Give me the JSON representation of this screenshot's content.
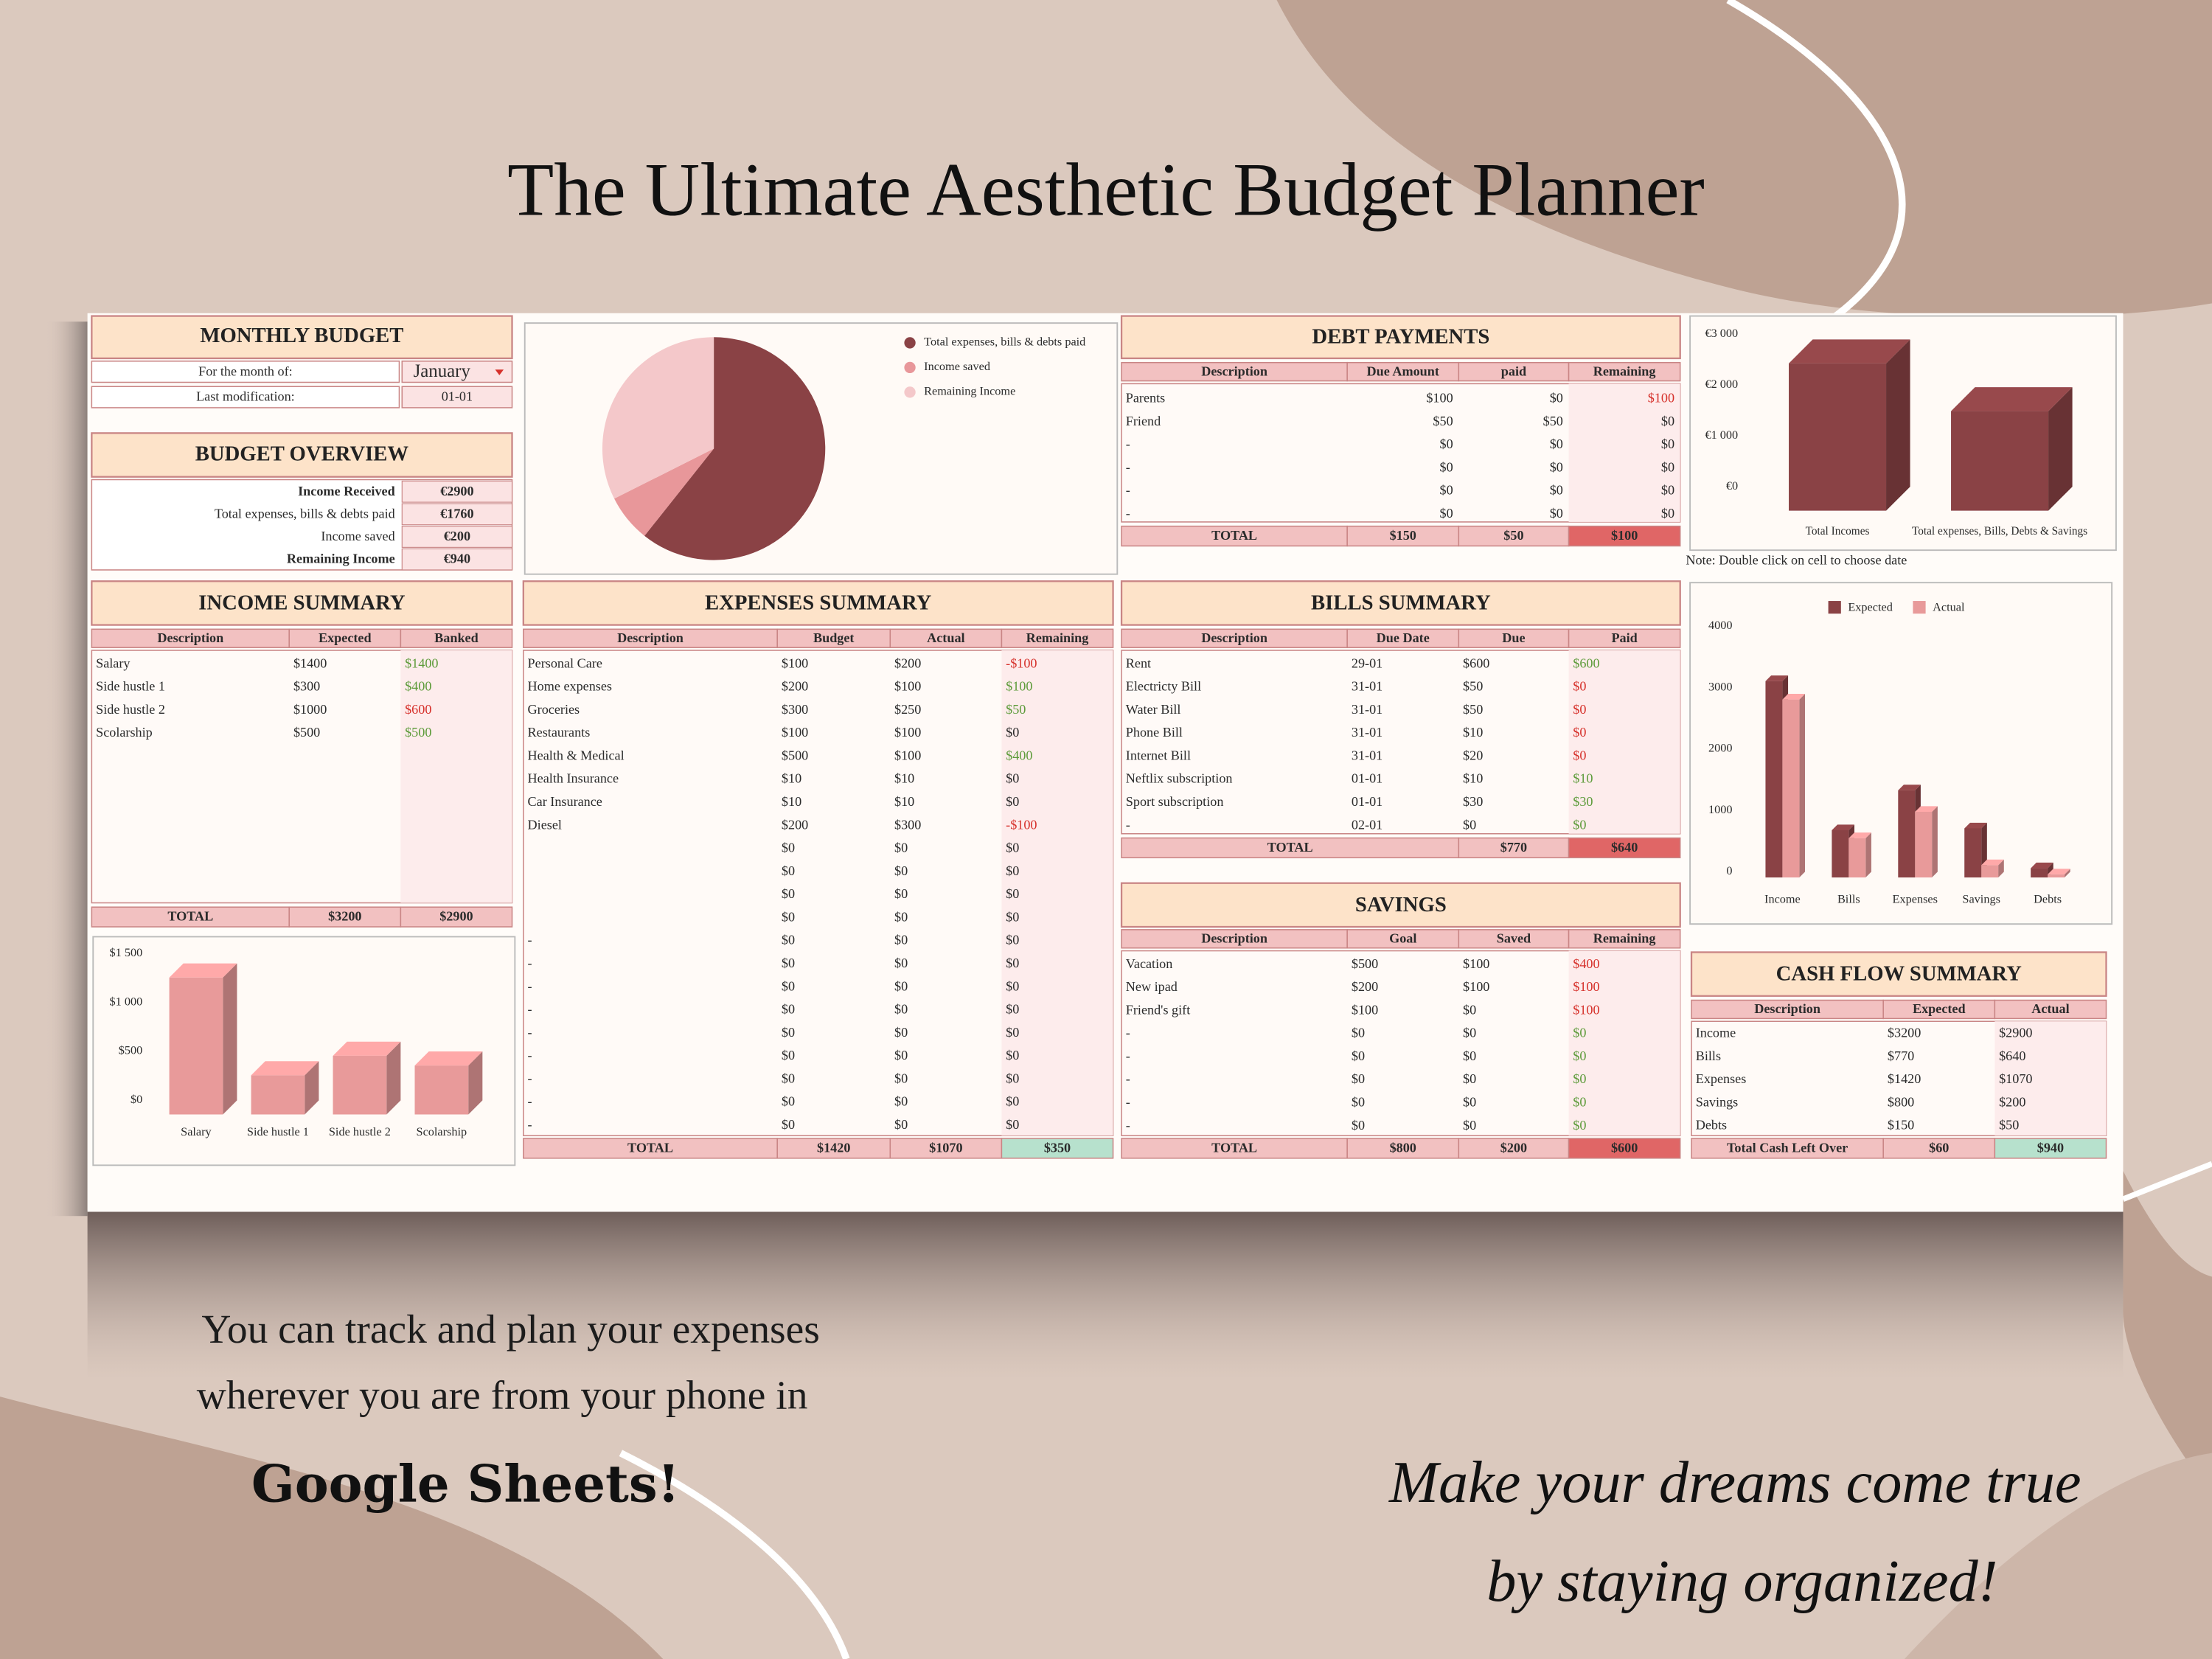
{
  "header": {
    "title": "The Ultimate Aesthetic Budget Planner"
  },
  "monthly_budget": {
    "title": "MONTHLY BUDGET",
    "rows": [
      [
        "For the month of:",
        "January"
      ],
      [
        "Last modification:",
        "01-01"
      ]
    ]
  },
  "budget_overview": {
    "title": "BUDGET OVERVIEW",
    "rows": [
      [
        "Income Received",
        "€2900"
      ],
      [
        "Total expenses, bills & debts paid",
        "€1760"
      ],
      [
        "Income saved",
        "€200"
      ],
      [
        "Remaining Income",
        "€940"
      ]
    ]
  },
  "income_summary": {
    "title": "INCOME SUMMARY",
    "columns": [
      "Description",
      "Expected",
      "Banked"
    ],
    "rows": [
      [
        "Salary",
        "$1400",
        "$1400"
      ],
      [
        "Side hustle 1",
        "$300",
        "$400"
      ],
      [
        "Side hustle 2",
        "$1000",
        "$600"
      ],
      [
        "Scolarship",
        "$500",
        "$500"
      ]
    ],
    "last_column_colors": [
      "#5d9b3a",
      "#5d9b3a",
      "#d6312b",
      "#5d9b3a"
    ],
    "total": [
      "TOTAL",
      "$3200",
      "$2900"
    ]
  },
  "expenses_summary": {
    "title": "EXPENSES SUMMARY",
    "columns": [
      "Description",
      "Budget",
      "Actual",
      "Remaining"
    ],
    "rows": [
      [
        "Personal Care",
        "$100",
        "$200",
        "-$100"
      ],
      [
        "Home expenses",
        "$200",
        "$100",
        "$100"
      ],
      [
        "Groceries",
        "$300",
        "$250",
        "$50"
      ],
      [
        "Restaurants",
        "$100",
        "$100",
        "$0"
      ],
      [
        "Health & Medical",
        "$500",
        "$100",
        "$400"
      ],
      [
        "Health Insurance",
        "$10",
        "$10",
        "$0"
      ],
      [
        "Car Insurance",
        "$10",
        "$10",
        "$0"
      ],
      [
        "Diesel",
        "$200",
        "$300",
        "-$100"
      ],
      [
        null,
        "$0",
        "$0",
        "$0"
      ],
      [
        null,
        "$0",
        "$0",
        "$0"
      ],
      [
        null,
        "$0",
        "$0",
        "$0"
      ],
      [
        null,
        "$0",
        "$0",
        "$0"
      ],
      [
        "-",
        "$0",
        "$0",
        "$0"
      ],
      [
        "-",
        "$0",
        "$0",
        "$0"
      ],
      [
        "-",
        "$0",
        "$0",
        "$0"
      ],
      [
        "-",
        "$0",
        "$0",
        "$0"
      ],
      [
        "-",
        "$0",
        "$0",
        "$0"
      ],
      [
        "-",
        "$0",
        "$0",
        "$0"
      ],
      [
        "-",
        "$0",
        "$0",
        "$0"
      ],
      [
        "-",
        "$0",
        "$0",
        "$0"
      ],
      [
        "-",
        "$0",
        "$0",
        "$0"
      ]
    ],
    "last_column_colors": [
      "#d6312b",
      "#5d9b3a",
      "#5d9b3a",
      null,
      "#5d9b3a",
      null,
      null,
      "#d6312b",
      null,
      null,
      null,
      null,
      null,
      null,
      null,
      null,
      null,
      null,
      null,
      null,
      null
    ],
    "total": [
      "TOTAL",
      "$1420",
      "$1070",
      "$350"
    ],
    "total_highlight": "#b7e1cd"
  },
  "debt_payments": {
    "title": "DEBT PAYMENTS",
    "columns": [
      "Description",
      "Due Amount",
      "paid",
      "Remaining"
    ],
    "rows": [
      [
        "Parents",
        "$100",
        "$0",
        "$100"
      ],
      [
        "Friend",
        "$50",
        "$50",
        "$0"
      ],
      [
        "-",
        "$0",
        "$0",
        "$0"
      ],
      [
        "-",
        "$0",
        "$0",
        "$0"
      ],
      [
        "-",
        "$0",
        "$0",
        "$0"
      ],
      [
        "-",
        "$0",
        "$0",
        "$0"
      ]
    ],
    "last_column_colors": [
      "#d6312b",
      null,
      null,
      null,
      null,
      null
    ],
    "total": [
      "TOTAL",
      "$150",
      "$50",
      "$100"
    ],
    "total_highlight": "#e06666"
  },
  "bills_summary": {
    "title": "BILLS SUMMARY",
    "columns": [
      "Description",
      "Due Date",
      "Due",
      "Paid"
    ],
    "rows": [
      [
        "Rent",
        "29-01",
        "$600",
        "$600"
      ],
      [
        "Electricty Bill",
        "31-01",
        "$50",
        "$0"
      ],
      [
        "Water Bill",
        "31-01",
        "$50",
        "$0"
      ],
      [
        "Phone Bill",
        "31-01",
        "$10",
        "$0"
      ],
      [
        "Internet Bill",
        "31-01",
        "$20",
        "$0"
      ],
      [
        "Neftlix subscription",
        "01-01",
        "$10",
        "$10"
      ],
      [
        "Sport subscription",
        "01-01",
        "$30",
        "$30"
      ],
      [
        "-",
        "02-01",
        "$0",
        "$0"
      ]
    ],
    "last_column_colors": [
      "#5d9b3a",
      "#d6312b",
      "#d6312b",
      "#d6312b",
      "#d6312b",
      "#5d9b3a",
      "#5d9b3a",
      "#5d9b3a"
    ],
    "total": [
      "TOTAL",
      null,
      "$770",
      "$640"
    ],
    "total_highlight": "#e06666"
  },
  "savings": {
    "title": "SAVINGS",
    "columns": [
      "Description",
      "Goal",
      "Saved",
      "Remaining"
    ],
    "rows": [
      [
        "Vacation",
        "$500",
        "$100",
        "$400"
      ],
      [
        "New ipad",
        "$200",
        "$100",
        "$100"
      ],
      [
        "Friend's gift",
        "$100",
        "$0",
        "$100"
      ],
      [
        "-",
        "$0",
        "$0",
        "$0"
      ],
      [
        "-",
        "$0",
        "$0",
        "$0"
      ],
      [
        "-",
        "$0",
        "$0",
        "$0"
      ],
      [
        "-",
        "$0",
        "$0",
        "$0"
      ],
      [
        "-",
        "$0",
        "$0",
        "$0"
      ]
    ],
    "last_column_colors": [
      "#d6312b",
      "#d6312b",
      "#d6312b",
      "#5d9b3a",
      "#5d9b3a",
      "#5d9b3a",
      "#5d9b3a",
      "#5d9b3a"
    ],
    "total": [
      "TOTAL",
      "$800",
      "$200",
      "$600"
    ],
    "total_highlight": "#e06666"
  },
  "cash_flow_summary": {
    "title": "CASH FLOW SUMMARY",
    "columns": [
      "Description",
      "Expected",
      "Actual"
    ],
    "rows": [
      [
        "Income",
        "$3200",
        "$2900"
      ],
      [
        "Bills",
        "$770",
        "$640"
      ],
      [
        "Expenses",
        "$1420",
        "$1070"
      ],
      [
        "Savings",
        "$800",
        "$200"
      ],
      [
        "Debts",
        "$150",
        "$50"
      ]
    ],
    "total": [
      "Total Cash Left Over",
      "$60",
      "$940"
    ],
    "total_highlight": "#b7e1cd"
  },
  "note": "Note: Double click on cell to choose date",
  "chart_data": [
    {
      "type": "pie",
      "categories": [
        "Total expenses, bills & debts paid",
        "Income saved",
        "Remaining Income"
      ],
      "values": [
        1760,
        200,
        940
      ],
      "colors": [
        "#8a4245",
        "#e8979a",
        "#f4c8ca"
      ]
    },
    {
      "type": "bar",
      "categories": [
        "Total Incomes",
        "Total expenses, Bills, Debts & Savings"
      ],
      "values": [
        2900,
        1960
      ],
      "color": "#8a4245",
      "ylim": [
        0,
        3000
      ],
      "yticks": [
        {
          "value": 0,
          "label": "€0"
        },
        {
          "value": 1000,
          "label": "€1 000"
        },
        {
          "value": 2000,
          "label": "€2 000"
        },
        {
          "value": 3000,
          "label": "€3 000"
        }
      ]
    },
    {
      "type": "bar",
      "categories": [
        "Salary",
        "Side hustle 1",
        "Side hustle 2",
        "Scolarship"
      ],
      "values": [
        1400,
        400,
        600,
        500
      ],
      "color": "#e89a9a",
      "ylim": [
        0,
        1500
      ],
      "yticks": [
        {
          "value": 0,
          "label": "$0"
        },
        {
          "value": 500,
          "label": "$500"
        },
        {
          "value": 1000,
          "label": "$1 000"
        },
        {
          "value": 1500,
          "label": "$1 500"
        }
      ]
    },
    {
      "type": "bar",
      "categories": [
        "Income",
        "Bills",
        "Expenses",
        "Savings",
        "Debts"
      ],
      "series": [
        {
          "name": "Expected",
          "color": "#8a4245",
          "values": [
            3200,
            770,
            1420,
            800,
            150
          ]
        },
        {
          "name": "Actual",
          "color": "#e89a9a",
          "values": [
            2900,
            640,
            1070,
            200,
            50
          ]
        }
      ],
      "ylim": [
        0,
        4000
      ],
      "yticks": [
        0,
        1000,
        2000,
        3000,
        4000
      ],
      "legend": "top"
    }
  ],
  "footer": {
    "lines": [
      "You can track and plan your expenses",
      "wherever you are from your phone in"
    ],
    "brand": "Google Sheets!",
    "slogan": [
      "Make your dreams come true",
      "by staying organized!"
    ]
  }
}
